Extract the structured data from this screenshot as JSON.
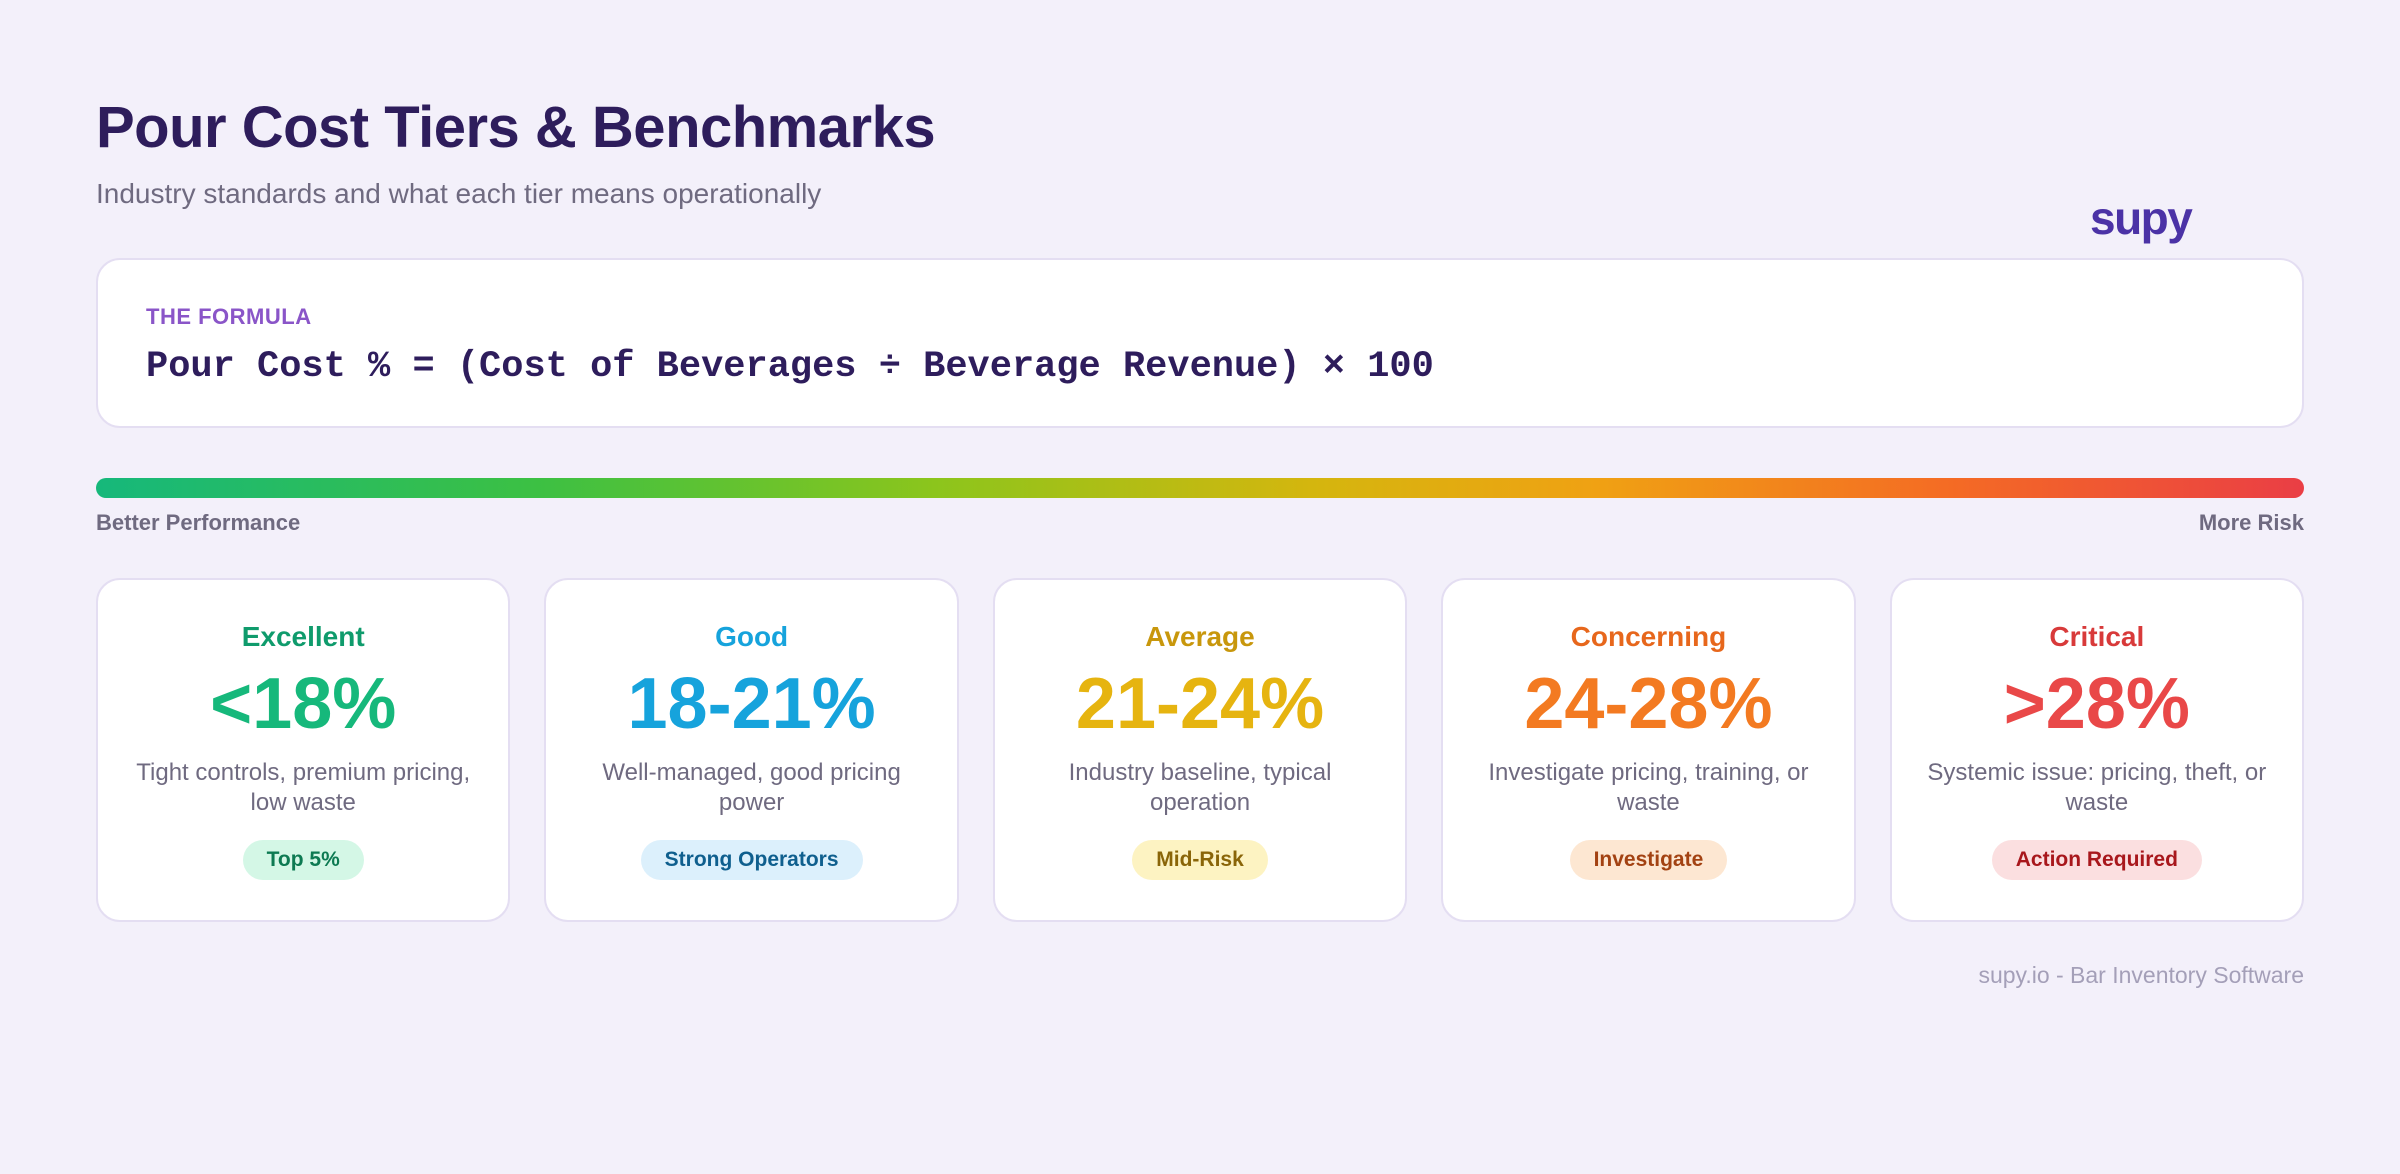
{
  "header": {
    "title": "Pour Cost Tiers & Benchmarks",
    "subtitle": "Industry standards and what each tier means operationally",
    "logo": "supy"
  },
  "formula": {
    "label": "THE FORMULA",
    "text": "Pour Cost % = (Cost of Beverages ÷ Beverage Revenue) × 100"
  },
  "scale": {
    "left_label": "Better Performance",
    "right_label": "More Risk"
  },
  "tiers": [
    {
      "name": "Excellent",
      "value": "<18%",
      "description": "Tight controls, premium pricing, low waste",
      "badge": "Top 5%",
      "name_color": "#0f9b6c",
      "value_color": "#16b87b",
      "badge_bg": "#d4f7e6",
      "badge_text": "#0d7a52"
    },
    {
      "name": "Good",
      "value": "18-21%",
      "description": "Well-managed, good pricing power",
      "badge": "Strong Operators",
      "name_color": "#16a3dc",
      "value_color": "#16a3dc",
      "badge_bg": "#dcf0fc",
      "badge_text": "#0f5f8e"
    },
    {
      "name": "Average",
      "value": "21-24%",
      "description": "Industry baseline, typical operation",
      "badge": "Mid-Risk",
      "name_color": "#c8970c",
      "value_color": "#e6b410",
      "badge_bg": "#fdf3c2",
      "badge_text": "#8a6508"
    },
    {
      "name": "Concerning",
      "value": "24-28%",
      "description": "Investigate pricing, training, or waste",
      "badge": "Investigate",
      "name_color": "#e7671c",
      "value_color": "#f37a21",
      "badge_bg": "#fde7d2",
      "badge_text": "#a34212"
    },
    {
      "name": "Critical",
      "value": ">28%",
      "description": "Systemic issue: pricing, theft, or waste",
      "badge": "Action Required",
      "name_color": "#d83a3a",
      "value_color": "#e94848",
      "badge_bg": "#fbdfe0",
      "badge_text": "#a8171c"
    }
  ],
  "footer": "supy.io - Bar Inventory Software"
}
